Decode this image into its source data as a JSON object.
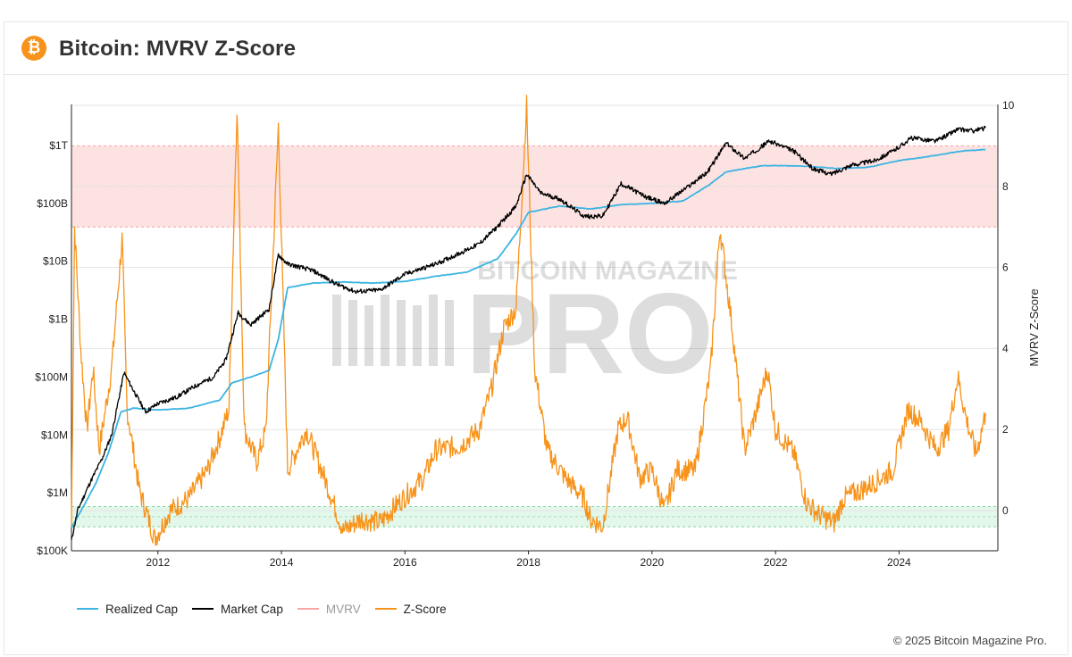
{
  "header": {
    "logo_glyph": "₿",
    "title": "Bitcoin: MVRV Z-Score"
  },
  "colors": {
    "realized_cap": "#3bb4e2",
    "market_cap": "#000000",
    "mvrv": "#f7a6a6",
    "z_score": "#f7931a",
    "top_band": "#fde2e2",
    "bottom_band": "#e3f7ea",
    "grid": "#e4e4e4"
  },
  "watermark": {
    "top": "BITCOIN MAGAZINE",
    "big": "PRO"
  },
  "legend": [
    {
      "key": "realized_cap",
      "label": "Realized Cap",
      "muted": false
    },
    {
      "key": "market_cap",
      "label": "Market Cap",
      "muted": false
    },
    {
      "key": "mvrv",
      "label": "MVRV",
      "muted": true
    },
    {
      "key": "z_score",
      "label": "Z-Score",
      "muted": false
    }
  ],
  "footer": {
    "copyright": "© 2025 Bitcoin Magazine Pro."
  },
  "chart_data": {
    "type": "line",
    "title": "Bitcoin: MVRV Z-Score",
    "x_range": [
      2010.6,
      2025.6
    ],
    "x_ticks": [
      2012,
      2014,
      2016,
      2018,
      2020,
      2022,
      2024
    ],
    "y_left": {
      "scale": "log",
      "range": [
        100000,
        10000000000000
      ],
      "ticks": [
        {
          "value": 100000,
          "label": "$100K"
        },
        {
          "value": 1000000,
          "label": "$1M"
        },
        {
          "value": 10000000,
          "label": "$10M"
        },
        {
          "value": 100000000,
          "label": "$100M"
        },
        {
          "value": 1000000000,
          "label": "$1B"
        },
        {
          "value": 10000000000,
          "label": "$10B"
        },
        {
          "value": 100000000000,
          "label": "$100B"
        },
        {
          "value": 1000000000000,
          "label": "$1T"
        }
      ]
    },
    "y_right": {
      "label": "MVRV Z-Score",
      "range": [
        -1.1,
        10
      ],
      "ticks": [
        0,
        2,
        4,
        6,
        8,
        10
      ]
    },
    "bands": [
      {
        "name": "overvalued",
        "from": 7,
        "to": 9.0
      },
      {
        "name": "undervalued",
        "from": -0.4,
        "to": 0.1
      }
    ],
    "series": [
      {
        "name": "Realized Cap",
        "axis": "left",
        "points": [
          [
            2010.6,
            250000.0
          ],
          [
            2010.8,
            600000.0
          ],
          [
            2011.0,
            1500000.0
          ],
          [
            2011.2,
            5000000.0
          ],
          [
            2011.4,
            25000000.0
          ],
          [
            2011.6,
            29000000.0
          ],
          [
            2012.0,
            27000000.0
          ],
          [
            2012.5,
            29000000.0
          ],
          [
            2013.0,
            40000000.0
          ],
          [
            2013.2,
            80000000.0
          ],
          [
            2013.5,
            100000000.0
          ],
          [
            2013.8,
            130000000.0
          ],
          [
            2013.95,
            450000000.0
          ],
          [
            2014.1,
            3500000000.0
          ],
          [
            2014.5,
            4200000000.0
          ],
          [
            2015.0,
            4400000000.0
          ],
          [
            2015.5,
            4200000000.0
          ],
          [
            2016.0,
            4500000000.0
          ],
          [
            2016.5,
            5500000000.0
          ],
          [
            2017.0,
            6500000000.0
          ],
          [
            2017.5,
            11000000000.0
          ],
          [
            2017.8,
            30000000000.0
          ],
          [
            2018.0,
            70000000000.0
          ],
          [
            2018.5,
            90000000000.0
          ],
          [
            2019.0,
            80000000000.0
          ],
          [
            2019.5,
            95000000000.0
          ],
          [
            2020.0,
            100000000000.0
          ],
          [
            2020.5,
            110000000000.0
          ],
          [
            2020.9,
            200000000000.0
          ],
          [
            2021.2,
            350000000000.0
          ],
          [
            2021.5,
            400000000000.0
          ],
          [
            2021.8,
            450000000000.0
          ],
          [
            2022.0,
            450000000000.0
          ],
          [
            2022.5,
            440000000000.0
          ],
          [
            2023.0,
            400000000000.0
          ],
          [
            2023.5,
            420000000000.0
          ],
          [
            2024.0,
            550000000000.0
          ],
          [
            2024.5,
            650000000000.0
          ],
          [
            2025.0,
            800000000000.0
          ],
          [
            2025.4,
            850000000000.0
          ]
        ]
      },
      {
        "name": "Market Cap",
        "axis": "left",
        "points": [
          [
            2010.6,
            150000.0
          ],
          [
            2010.7,
            500000.0
          ],
          [
            2010.9,
            1500000.0
          ],
          [
            2011.1,
            4000000.0
          ],
          [
            2011.25,
            10000000.0
          ],
          [
            2011.45,
            120000000.0
          ],
          [
            2011.6,
            60000000.0
          ],
          [
            2011.8,
            25000000.0
          ],
          [
            2012.0,
            35000000.0
          ],
          [
            2012.3,
            45000000.0
          ],
          [
            2012.6,
            70000000.0
          ],
          [
            2012.9,
            100000000.0
          ],
          [
            2013.1,
            200000000.0
          ],
          [
            2013.3,
            1300000000.0
          ],
          [
            2013.5,
            800000000.0
          ],
          [
            2013.8,
            1500000000.0
          ],
          [
            2013.95,
            13000000000.0
          ],
          [
            2014.1,
            9000000000.0
          ],
          [
            2014.5,
            7000000000.0
          ],
          [
            2014.9,
            4000000000.0
          ],
          [
            2015.2,
            3000000000.0
          ],
          [
            2015.6,
            3200000000.0
          ],
          [
            2016.0,
            6000000000.0
          ],
          [
            2016.5,
            9000000000.0
          ],
          [
            2016.9,
            14000000000.0
          ],
          [
            2017.2,
            20000000000.0
          ],
          [
            2017.5,
            40000000000.0
          ],
          [
            2017.8,
            90000000000.0
          ],
          [
            2017.97,
            320000000000.0
          ],
          [
            2018.2,
            150000000000.0
          ],
          [
            2018.5,
            120000000000.0
          ],
          [
            2018.9,
            60000000000.0
          ],
          [
            2019.2,
            60000000000.0
          ],
          [
            2019.5,
            220000000000.0
          ],
          [
            2019.9,
            130000000000.0
          ],
          [
            2020.2,
            100000000000.0
          ],
          [
            2020.6,
            200000000000.0
          ],
          [
            2020.9,
            350000000000.0
          ],
          [
            2021.2,
            1100000000000.0
          ],
          [
            2021.5,
            600000000000.0
          ],
          [
            2021.9,
            1200000000000.0
          ],
          [
            2022.3,
            800000000000.0
          ],
          [
            2022.6,
            400000000000.0
          ],
          [
            2022.9,
            320000000000.0
          ],
          [
            2023.2,
            450000000000.0
          ],
          [
            2023.6,
            550000000000.0
          ],
          [
            2023.9,
            800000000000.0
          ],
          [
            2024.2,
            1350000000000.0
          ],
          [
            2024.6,
            1200000000000.0
          ],
          [
            2024.95,
            1900000000000.0
          ],
          [
            2025.2,
            1800000000000.0
          ],
          [
            2025.4,
            2000000000000.0
          ]
        ]
      },
      {
        "name": "Z-Score",
        "axis": "right",
        "points": [
          [
            2010.6,
            -0.4
          ],
          [
            2010.65,
            7.0
          ],
          [
            2010.75,
            4.0
          ],
          [
            2010.85,
            2.0
          ],
          [
            2010.95,
            3.5
          ],
          [
            2011.05,
            1.5
          ],
          [
            2011.25,
            3.5
          ],
          [
            2011.42,
            6.7
          ],
          [
            2011.5,
            2.5
          ],
          [
            2011.7,
            0.5
          ],
          [
            2011.95,
            -0.7
          ],
          [
            2012.2,
            0.0
          ],
          [
            2012.5,
            0.3
          ],
          [
            2012.8,
            1.0
          ],
          [
            2013.0,
            1.8
          ],
          [
            2013.15,
            2.5
          ],
          [
            2013.28,
            10.0
          ],
          [
            2013.4,
            2.0
          ],
          [
            2013.6,
            1.2
          ],
          [
            2013.75,
            2.0
          ],
          [
            2013.95,
            9.5
          ],
          [
            2014.1,
            1.0
          ],
          [
            2014.4,
            2.0
          ],
          [
            2014.7,
            0.8
          ],
          [
            2015.0,
            -0.5
          ],
          [
            2015.3,
            -0.2
          ],
          [
            2015.6,
            -0.3
          ],
          [
            2015.9,
            0.2
          ],
          [
            2016.3,
            0.8
          ],
          [
            2016.5,
            1.5
          ],
          [
            2016.9,
            1.6
          ],
          [
            2017.2,
            2.0
          ],
          [
            2017.4,
            3.0
          ],
          [
            2017.6,
            4.5
          ],
          [
            2017.8,
            5.0
          ],
          [
            2017.97,
            10.0
          ],
          [
            2018.1,
            3.5
          ],
          [
            2018.3,
            1.5
          ],
          [
            2018.6,
            0.8
          ],
          [
            2018.9,
            0.3
          ],
          [
            2019.0,
            -0.2
          ],
          [
            2019.2,
            -0.4
          ],
          [
            2019.45,
            2.0
          ],
          [
            2019.6,
            2.3
          ],
          [
            2019.8,
            0.8
          ],
          [
            2020.0,
            1.0
          ],
          [
            2020.2,
            0.0
          ],
          [
            2020.4,
            1.0
          ],
          [
            2020.7,
            1.0
          ],
          [
            2020.95,
            3.5
          ],
          [
            2021.1,
            7.0
          ],
          [
            2021.3,
            4.5
          ],
          [
            2021.5,
            1.5
          ],
          [
            2021.7,
            2.5
          ],
          [
            2021.87,
            3.5
          ],
          [
            2022.0,
            2.0
          ],
          [
            2022.3,
            1.4
          ],
          [
            2022.5,
            0.2
          ],
          [
            2022.7,
            -0.1
          ],
          [
            2022.95,
            -0.3
          ],
          [
            2023.1,
            0.3
          ],
          [
            2023.5,
            0.6
          ],
          [
            2023.9,
            1.0
          ],
          [
            2024.15,
            2.5
          ],
          [
            2024.35,
            2.2
          ],
          [
            2024.6,
            1.5
          ],
          [
            2024.8,
            2.0
          ],
          [
            2024.95,
            3.3
          ],
          [
            2025.1,
            2.2
          ],
          [
            2025.25,
            1.4
          ],
          [
            2025.4,
            2.4
          ]
        ]
      }
    ]
  }
}
